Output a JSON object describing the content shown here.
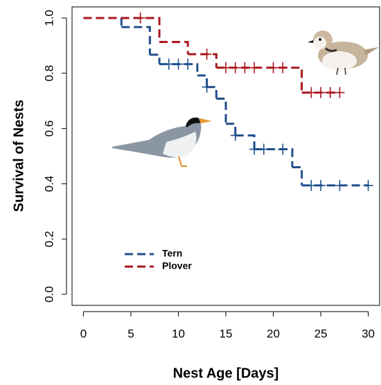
{
  "chart_data": {
    "type": "step",
    "xlabel": "Nest Age [Days]",
    "ylabel": "Survival of Nests",
    "xlim": [
      -1.2,
      31.2
    ],
    "ylim": [
      -0.04,
      1.04
    ],
    "xticks": [
      0,
      5,
      10,
      15,
      20,
      25,
      30
    ],
    "yticks": [
      {
        "value": 0,
        "label": "0.0"
      },
      0.2,
      0.4,
      0.6,
      0.8,
      {
        "value": 1,
        "label": "1.0"
      }
    ],
    "legend": "bottom-left",
    "series": [
      {
        "name": "Tern",
        "color": "#1f4e8c",
        "x": [
          0,
          4,
          7,
          8,
          12,
          13,
          14,
          15,
          16,
          18,
          22,
          23,
          30
        ],
        "values": [
          1,
          0.967,
          0.867,
          0.833,
          0.792,
          0.75,
          0.708,
          0.617,
          0.575,
          0.525,
          0.46,
          0.394,
          0.394
        ],
        "censor_x": [
          9,
          10,
          11,
          13,
          16,
          18,
          19,
          21,
          24,
          25,
          27,
          30
        ],
        "censor_values": [
          0.833,
          0.833,
          0.833,
          0.75,
          0.575,
          0.525,
          0.525,
          0.525,
          0.394,
          0.394,
          0.394,
          0.394
        ]
      },
      {
        "name": "Plover",
        "color": "#a8161d",
        "x": [
          0,
          8,
          11,
          14,
          23,
          27
        ],
        "values": [
          1,
          0.913,
          0.869,
          0.82,
          0.73,
          0.73
        ],
        "censor_x": [
          6,
          13,
          15,
          16,
          17,
          18,
          20,
          21,
          24,
          25,
          26,
          27
        ],
        "censor_values": [
          1,
          0.869,
          0.82,
          0.82,
          0.82,
          0.82,
          0.82,
          0.82,
          0.73,
          0.73,
          0.73,
          0.73
        ]
      }
    ]
  }
}
